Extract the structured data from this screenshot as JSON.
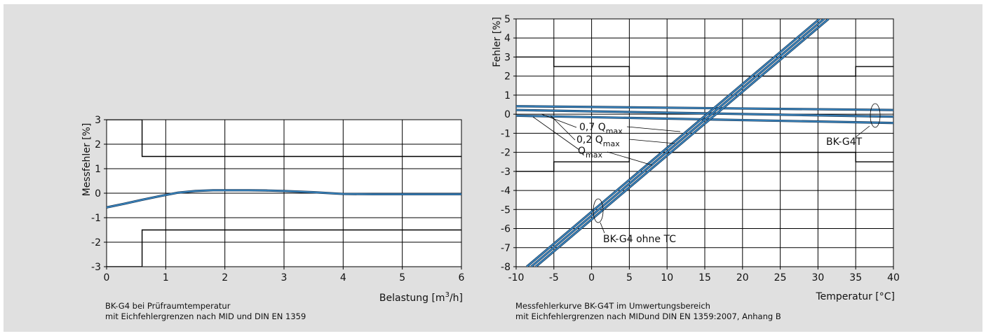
{
  "colors": {
    "background": "#e0e0e0",
    "grid": "#000000",
    "curve": "#3c8cc8",
    "limits": "#000000"
  },
  "chart_data": [
    {
      "type": "line",
      "title": "",
      "xlabel": "Belastung [m³/h]",
      "xlabel_main": "Belastung [m",
      "xlabel_sup": "3",
      "xlabel_tail": "/h]",
      "ylabel": "Messfehler [%]",
      "xlim": [
        0,
        6
      ],
      "ylim": [
        -3,
        3
      ],
      "xticks": [
        "0",
        "1",
        "2",
        "3",
        "4",
        "5",
        "6"
      ],
      "yticks": [
        "3",
        "2",
        "1",
        "0",
        "-1",
        "-2",
        "-3"
      ],
      "grid": true,
      "series": [
        {
          "x": [
            0,
            0.3,
            0.6,
            0.9,
            1.2,
            1.5,
            1.8,
            2.1,
            2.4,
            2.7,
            3.0,
            3.5,
            4.0,
            4.5,
            5.0,
            5.5,
            6.0
          ],
          "values": [
            -0.58,
            -0.43,
            -0.27,
            -0.12,
            0.02,
            0.09,
            0.12,
            0.12,
            0.12,
            0.11,
            0.09,
            0.04,
            -0.03,
            -0.04,
            -0.04,
            -0.04,
            -0.04
          ]
        }
      ],
      "limit_lines": [
        {
          "x": [
            0,
            0.6,
            0.6,
            6
          ],
          "values": [
            3,
            3,
            1.5,
            1.5
          ]
        },
        {
          "x": [
            0,
            0.6,
            0.6,
            6
          ],
          "values": [
            -3,
            -3,
            -1.5,
            -1.5
          ]
        }
      ],
      "caption": [
        "BK-G4 bei Prüfraumtemperatur",
        "mit Eichfehlergrenzen nach MID und DIN EN 1359"
      ]
    },
    {
      "type": "line",
      "title": "",
      "xlabel": "Temperatur [°C]",
      "ylabel": "Fehler [%]",
      "xlim": [
        -10,
        40
      ],
      "ylim": [
        -8,
        5
      ],
      "xticks": [
        "-10",
        "-5",
        "0",
        "5",
        "10",
        "15",
        "20",
        "25",
        "30",
        "35",
        "40"
      ],
      "yticks": [
        "5",
        "4",
        "3",
        "2",
        "1",
        "0",
        "-1",
        "-2",
        "-3",
        "-4",
        "-5",
        "-6",
        "-7",
        "-8"
      ],
      "grid": true,
      "series": [
        {
          "x": [
            -10,
            40
          ],
          "values": [
            0.42,
            0.22
          ]
        },
        {
          "x": [
            -10,
            40
          ],
          "values": [
            0.22,
            -0.13
          ]
        },
        {
          "x": [
            -10,
            40
          ],
          "values": [
            -0.08,
            -0.46
          ]
        },
        {
          "x": [
            -8.6,
            30.2
          ],
          "values": [
            -8,
            5
          ]
        },
        {
          "x": [
            -8.0,
            30.8
          ],
          "values": [
            -8,
            5
          ]
        },
        {
          "x": [
            -7.4,
            31.4
          ],
          "values": [
            -8,
            5
          ]
        }
      ],
      "limit_lines": [
        {
          "x": [
            -10,
            -5,
            -5,
            5,
            5,
            35,
            35,
            40
          ],
          "values": [
            3,
            3,
            2.5,
            2.5,
            2,
            2,
            2.5,
            2.5
          ]
        },
        {
          "x": [
            -10,
            -5,
            -5,
            5,
            5,
            35,
            35,
            40
          ],
          "values": [
            -3,
            -3,
            -2.5,
            -2.5,
            -2,
            -2,
            -2.5,
            -2.5
          ]
        }
      ],
      "annotations": [
        {
          "prefix": "0,7 Q",
          "sub": "max"
        },
        {
          "prefix": "0,2 Q",
          "sub": "max"
        },
        {
          "prefix": "Q",
          "sub": "max"
        },
        {
          "text": "BK-G4T"
        },
        {
          "text": "BK-G4 ohne TC"
        }
      ],
      "caption": [
        "Messfehlerkurve BK-G4T im Umwertungsbereich",
        "mit Eichfehlergrenzen nach MIDund DIN EN 1359:2007, Anhang B"
      ]
    }
  ]
}
